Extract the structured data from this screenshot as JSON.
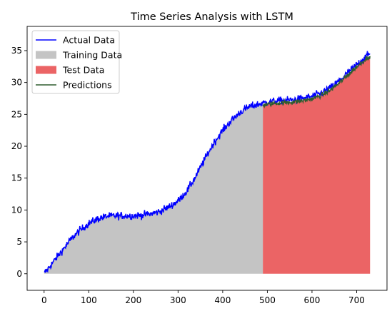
{
  "chart_data": {
    "type": "line",
    "title": "Time Series Analysis with LSTM",
    "xlabel": "",
    "ylabel": "",
    "xlim": [
      -38,
      768
    ],
    "ylim": [
      -2.6,
      38.8
    ],
    "x_ticks": [
      0,
      100,
      200,
      300,
      400,
      500,
      600,
      700
    ],
    "y_ticks": [
      0,
      5,
      10,
      15,
      20,
      25,
      30,
      35
    ],
    "grid": false,
    "legend_position": "top-left",
    "train_end": 490,
    "x_max": 730,
    "legend": [
      {
        "key": "actual",
        "label": "Actual Data"
      },
      {
        "key": "training",
        "label": "Training Data"
      },
      {
        "key": "test",
        "label": "Test Data"
      },
      {
        "key": "predictions",
        "label": "Predictions"
      }
    ],
    "colors": {
      "actual": "#0000ff",
      "training": "#c4c4c4",
      "test": "#eb6465",
      "predictions": "#2f5c2f"
    },
    "trend_points": [
      [
        0,
        0.0
      ],
      [
        20,
        1.8
      ],
      [
        40,
        3.6
      ],
      [
        60,
        5.4
      ],
      [
        80,
        6.8
      ],
      [
        100,
        7.9
      ],
      [
        120,
        8.6
      ],
      [
        140,
        9.0
      ],
      [
        160,
        9.1
      ],
      [
        180,
        9.1
      ],
      [
        200,
        9.1
      ],
      [
        220,
        9.2
      ],
      [
        240,
        9.4
      ],
      [
        260,
        9.8
      ],
      [
        280,
        10.5
      ],
      [
        300,
        11.4
      ],
      [
        320,
        13.0
      ],
      [
        340,
        15.3
      ],
      [
        360,
        18.0
      ],
      [
        380,
        20.5
      ],
      [
        400,
        22.5
      ],
      [
        420,
        24.1
      ],
      [
        440,
        25.4
      ],
      [
        460,
        26.2
      ],
      [
        480,
        26.6
      ],
      [
        500,
        26.9
      ],
      [
        520,
        27.1
      ],
      [
        540,
        27.2
      ],
      [
        560,
        27.3
      ],
      [
        580,
        27.5
      ],
      [
        600,
        27.8
      ],
      [
        620,
        28.3
      ],
      [
        640,
        29.1
      ],
      [
        660,
        30.2
      ],
      [
        680,
        31.5
      ],
      [
        700,
        32.8
      ],
      [
        720,
        34.0
      ],
      [
        730,
        34.5
      ]
    ],
    "series": [
      {
        "name": "Actual Data",
        "noise": 0.42,
        "x_range": [
          0,
          730
        ]
      },
      {
        "name": "Training Data",
        "kind": "area",
        "x_range": [
          0,
          490
        ]
      },
      {
        "name": "Test Data",
        "kind": "area",
        "x_range": [
          490,
          730
        ]
      },
      {
        "name": "Predictions",
        "noise": 0.25,
        "x_range": [
          490,
          730
        ]
      }
    ]
  }
}
